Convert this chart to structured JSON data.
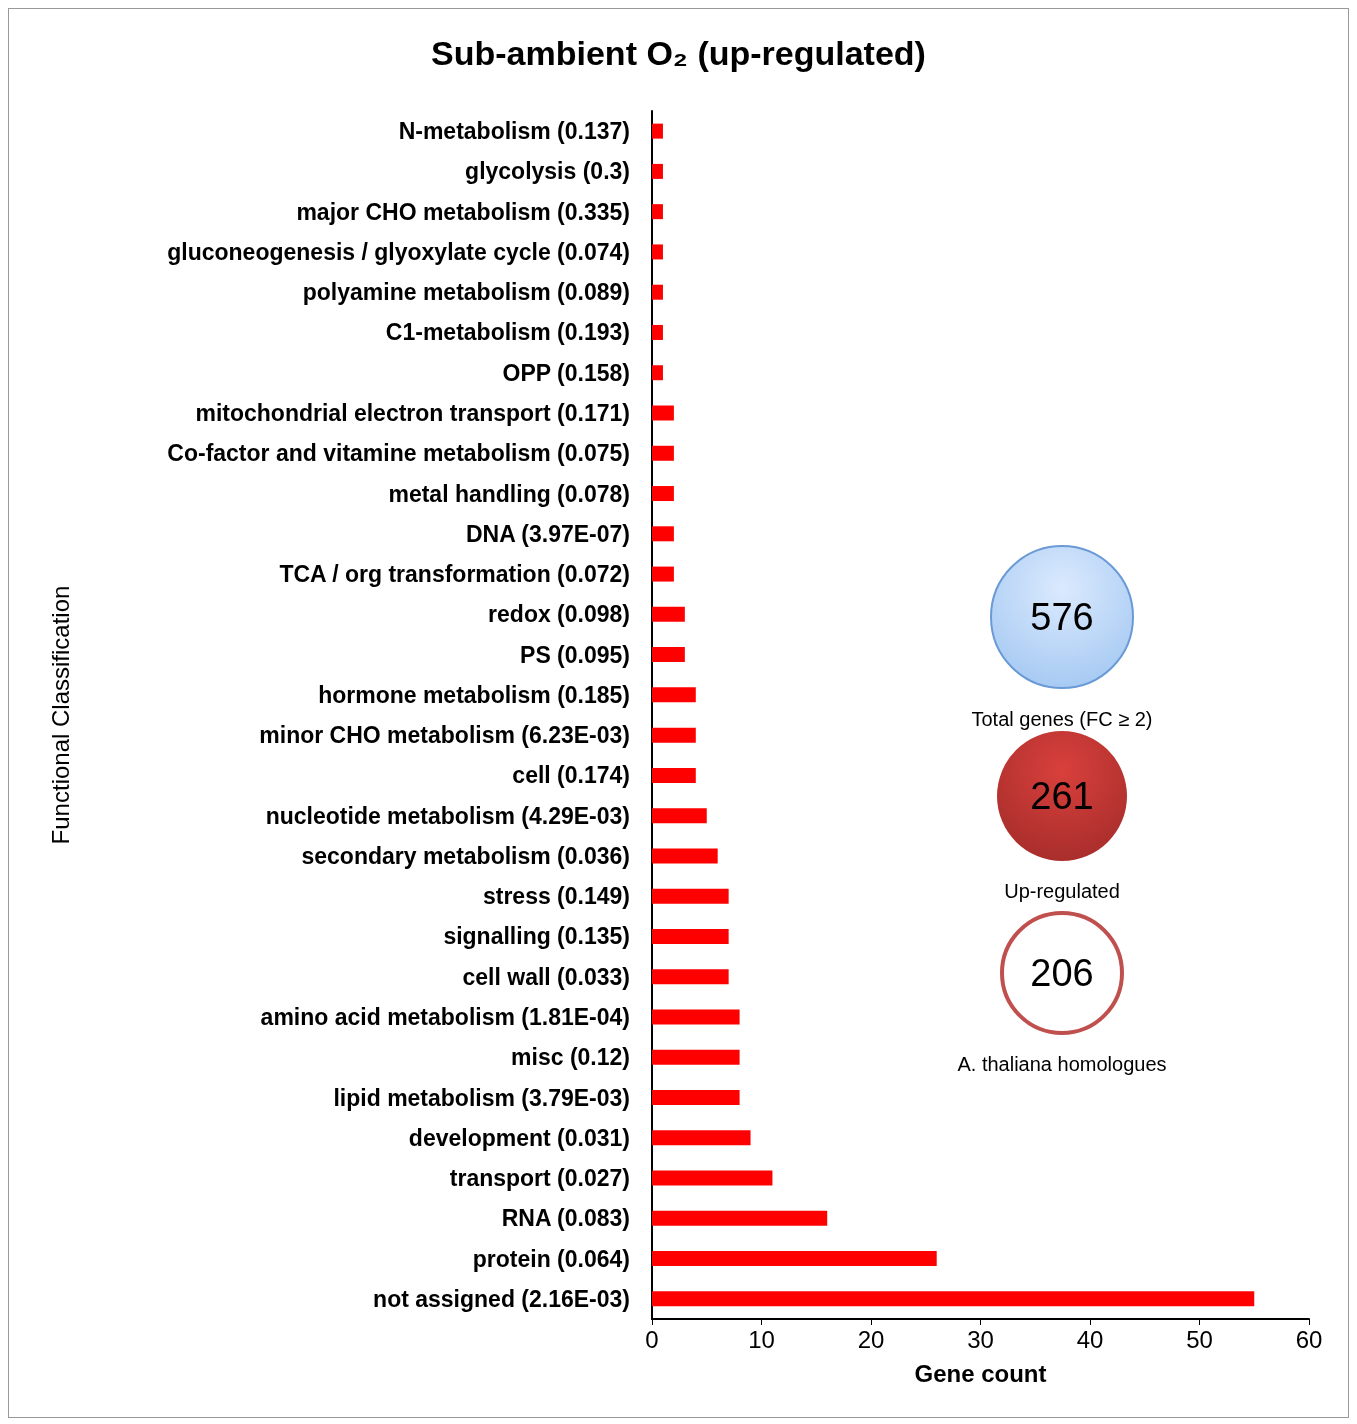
{
  "chart_data": {
    "type": "bar",
    "orientation": "horizontal",
    "title": "Sub-ambient O₂ (up-regulated)",
    "xlabel": "Gene count",
    "ylabel": "Functional Classification",
    "categories": [
      "N-metabolism (0.137)",
      "glycolysis (0.3)",
      "major CHO metabolism (0.335)",
      "gluconeogenesis / glyoxylate cycle (0.074)",
      "polyamine metabolism (0.089)",
      "C1-metabolism (0.193)",
      "OPP (0.158)",
      "mitochondrial electron transport (0.171)",
      "Co-factor and vitamine metabolism (0.075)",
      "metal handling (0.078)",
      "DNA (3.97E-07)",
      "TCA / org transformation (0.072)",
      "redox (0.098)",
      "PS (0.095)",
      "hormone metabolism (0.185)",
      "minor CHO metabolism (6.23E-03)",
      "cell (0.174)",
      "nucleotide metabolism (4.29E-03)",
      "secondary metabolism (0.036)",
      "stress (0.149)",
      "signalling (0.135)",
      "cell wall (0.033)",
      "amino acid metabolism (1.81E-04)",
      "misc (0.12)",
      "lipid metabolism (3.79E-03)",
      "development (0.031)",
      "transport (0.027)",
      "RNA (0.083)",
      "protein (0.064)",
      "not assigned (2.16E-03)"
    ],
    "values": [
      1,
      1,
      1,
      1,
      1,
      1,
      1,
      2,
      2,
      2,
      2,
      2,
      3,
      3,
      4,
      4,
      4,
      5,
      6,
      7,
      7,
      7,
      8,
      8,
      8,
      9,
      11,
      16,
      26,
      55
    ],
    "color": "#ff0000",
    "xlim": [
      0,
      60
    ],
    "xticks": [
      0,
      10,
      20,
      30,
      40,
      50,
      60
    ],
    "grid": false,
    "annotations": [
      "576",
      "Total genes (FC ≥ 2)",
      "261",
      "Up-regulated",
      "206",
      "A. thaliana homologues"
    ]
  }
}
